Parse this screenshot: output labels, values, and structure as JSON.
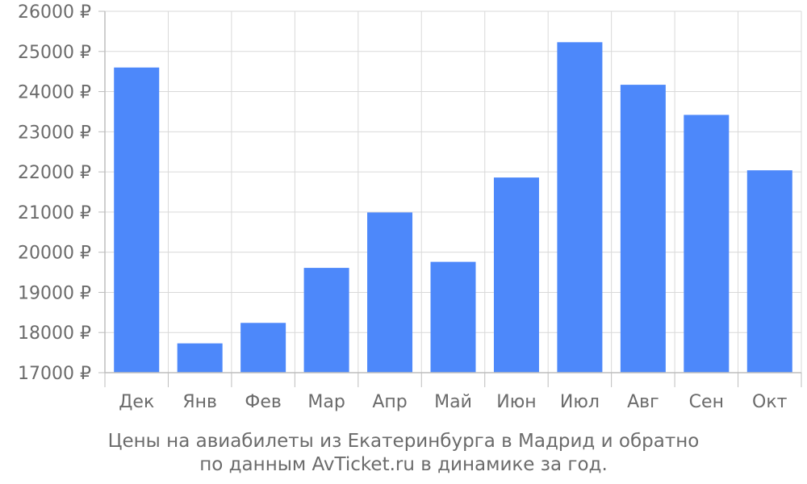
{
  "chart_data": {
    "type": "bar",
    "categories": [
      "Дек",
      "Янв",
      "Фев",
      "Мар",
      "Апр",
      "Май",
      "Июн",
      "Июл",
      "Авг",
      "Сен",
      "Окт"
    ],
    "values": [
      24600,
      17730,
      18240,
      19610,
      20990,
      19760,
      21860,
      25230,
      24170,
      23420,
      22040
    ],
    "ylim": [
      17000,
      26000
    ],
    "yticks": [
      17000,
      18000,
      19000,
      20000,
      21000,
      22000,
      23000,
      24000,
      25000,
      26000
    ],
    "currency_suffix": " ₽",
    "bar_color": "#4d88fa",
    "grid": true,
    "caption": [
      "Цены на авиабилеты из Екатеринбурга в Мадрид и обратно",
      "по данным AvTicket.ru в динамике за год."
    ]
  }
}
